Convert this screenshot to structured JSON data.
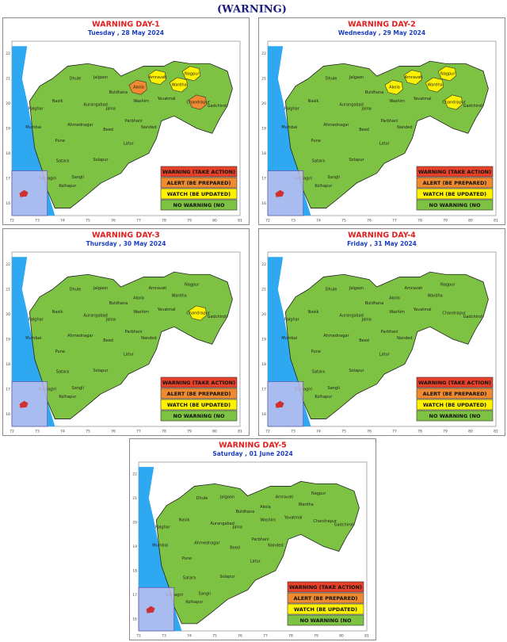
{
  "header": {
    "title": "(WARNING)"
  },
  "legend": [
    {
      "label": "WARNING (TAKE ACTION)",
      "color": "#e8412a",
      "level": "warning"
    },
    {
      "label": "ALERT (BE PREPARED)",
      "color": "#f08a30",
      "level": "alert"
    },
    {
      "label": "WATCH (BE UPDATED)",
      "color": "#fff200",
      "level": "watch"
    },
    {
      "label": "NO WARNING (NO",
      "color": "#7dc242",
      "level": "none"
    }
  ],
  "map_axes": {
    "lon_ticks": [
      72,
      73,
      74,
      75,
      76,
      77,
      78,
      79,
      80,
      81
    ],
    "lat_ticks": [
      16,
      17,
      18,
      19,
      20,
      21,
      22
    ]
  },
  "districts": [
    "Palghar",
    "Mumbai",
    "Nasik",
    "Dhule",
    "Jalgaon",
    "Buldhana",
    "Akola",
    "Amravati",
    "Nagpur",
    "Wardha",
    "Yavatmal",
    "Chandrapur",
    "Gadchiroli",
    "Washim",
    "Aurangabad",
    "Jalna",
    "Parbhani",
    "Nanded",
    "Ahmednagar",
    "Beed",
    "Pune",
    "Latur",
    "Satara",
    "Solapur",
    "Sangli",
    "Kolhapur",
    "Ratnagiri"
  ],
  "panels": [
    {
      "title": "WARNING DAY-1",
      "date": "Tuesday ,  28 May 2024",
      "levels": [
        "none",
        "none",
        "none",
        "none",
        "none",
        "none",
        "alert",
        "watch",
        "watch",
        "watch",
        "none",
        "alert",
        "none",
        "none",
        "none",
        "none",
        "none",
        "none",
        "none",
        "none",
        "none",
        "none",
        "none",
        "none",
        "none",
        "none",
        "none"
      ]
    },
    {
      "title": "WARNING DAY-2",
      "date": "Wednesday ,  29 May 2024",
      "levels": [
        "none",
        "none",
        "none",
        "none",
        "none",
        "none",
        "watch",
        "watch",
        "watch",
        "watch",
        "none",
        "watch",
        "none",
        "none",
        "none",
        "none",
        "none",
        "none",
        "none",
        "none",
        "none",
        "none",
        "none",
        "none",
        "none",
        "none",
        "none"
      ]
    },
    {
      "title": "WARNING DAY-3",
      "date": "Thursday ,  30 May 2024",
      "levels": [
        "none",
        "none",
        "none",
        "none",
        "none",
        "none",
        "none",
        "none",
        "none",
        "none",
        "none",
        "watch",
        "none",
        "none",
        "none",
        "none",
        "none",
        "none",
        "none",
        "none",
        "none",
        "none",
        "none",
        "none",
        "none",
        "none",
        "none"
      ]
    },
    {
      "title": "WARNING DAY-4",
      "date": "Friday ,  31 May 2024",
      "levels": [
        "none",
        "none",
        "none",
        "none",
        "none",
        "none",
        "none",
        "none",
        "none",
        "none",
        "none",
        "none",
        "none",
        "none",
        "none",
        "none",
        "none",
        "none",
        "none",
        "none",
        "none",
        "none",
        "none",
        "none",
        "none",
        "none",
        "none"
      ]
    },
    {
      "title": "WARNING DAY-5",
      "date": "Saturday ,  01 June 2024",
      "levels": [
        "none",
        "none",
        "none",
        "none",
        "none",
        "none",
        "none",
        "none",
        "none",
        "none",
        "none",
        "none",
        "none",
        "none",
        "none",
        "none",
        "none",
        "none",
        "none",
        "none",
        "none",
        "none",
        "none",
        "none",
        "none",
        "none",
        "none"
      ]
    }
  ]
}
